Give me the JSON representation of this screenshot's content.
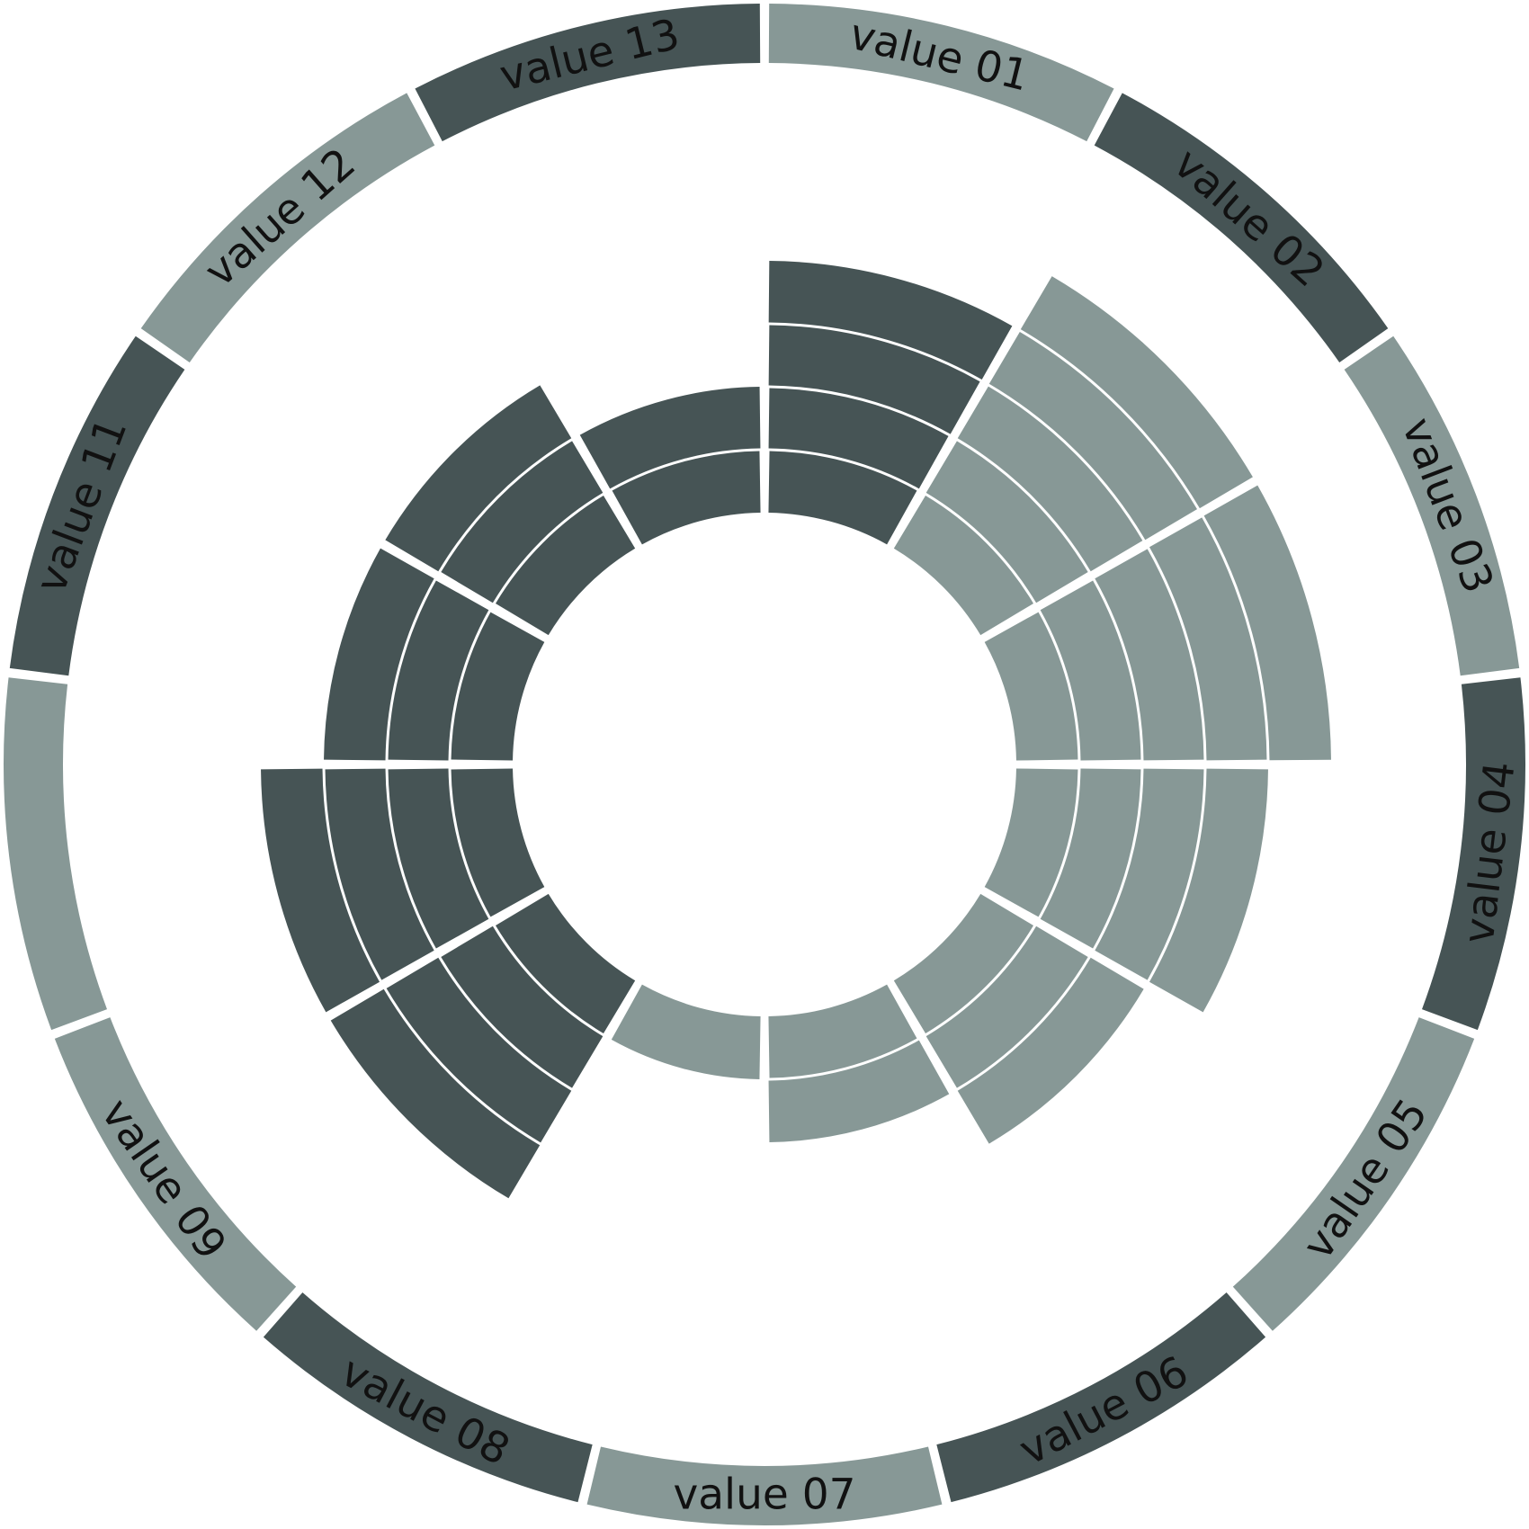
{
  "chart_data": {
    "type": "radial-segmented-bar",
    "colors": {
      "light": "#879896",
      "dark": "#465455",
      "background": "#ffffff"
    },
    "ring_labels": [
      {
        "label": "value 01",
        "shade": "light"
      },
      {
        "label": "value 02",
        "shade": "dark"
      },
      {
        "label": "value 03",
        "shade": "light"
      },
      {
        "label": "value 04",
        "shade": "dark"
      },
      {
        "label": "value 05",
        "shade": "light"
      },
      {
        "label": "value 06",
        "shade": "dark"
      },
      {
        "label": "value 07",
        "shade": "light"
      },
      {
        "label": "value 08",
        "shade": "dark"
      },
      {
        "label": "value 09",
        "shade": "light"
      },
      {
        "label": "",
        "shade": "light"
      },
      {
        "label": "value 11",
        "shade": "dark"
      },
      {
        "label": "value 12",
        "shade": "light"
      },
      {
        "label": "value 13",
        "shade": "dark"
      }
    ],
    "bars": [
      {
        "start_deg": 0,
        "end_deg": 30,
        "segments": 4,
        "shade": "dark"
      },
      {
        "start_deg": 30,
        "end_deg": 60,
        "segments": 5,
        "shade": "light"
      },
      {
        "start_deg": 60,
        "end_deg": 90,
        "segments": 5,
        "shade": "light"
      },
      {
        "start_deg": 90,
        "end_deg": 120,
        "segments": 4,
        "shade": "light"
      },
      {
        "start_deg": 120,
        "end_deg": 150,
        "segments": 3,
        "shade": "light"
      },
      {
        "start_deg": 150,
        "end_deg": 180,
        "segments": 2,
        "shade": "light"
      },
      {
        "start_deg": 180,
        "end_deg": 210,
        "segments": 1,
        "shade": "light"
      },
      {
        "start_deg": 210,
        "end_deg": 240,
        "segments": 4,
        "shade": "dark"
      },
      {
        "start_deg": 240,
        "end_deg": 270,
        "segments": 4,
        "shade": "dark"
      },
      {
        "start_deg": 270,
        "end_deg": 300,
        "segments": 3,
        "shade": "dark"
      },
      {
        "start_deg": 300,
        "end_deg": 330,
        "segments": 3,
        "shade": "dark"
      },
      {
        "start_deg": 330,
        "end_deg": 360,
        "segments": 2,
        "shade": "dark"
      }
    ]
  }
}
